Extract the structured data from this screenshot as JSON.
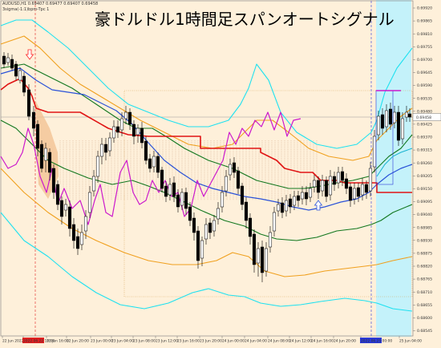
{
  "header": {
    "line1": "AUDUSD,H1  0.69407 0.69477 0.69407 0.69458",
    "line2": "3sigma(-1:1)bpm-Tpc 1"
  },
  "title": "豪ドルドル1時間足スパンオートシグナル",
  "price_axis": {
    "labels": [
      "0.69920",
      "0.69865",
      "0.69810",
      "0.69755",
      "0.69700",
      "0.69645",
      "0.69590",
      "0.69535",
      "0.69480",
      "0.69425",
      "0.69370",
      "0.69315",
      "0.69260",
      "0.69205",
      "0.69150",
      "0.69095",
      "0.69040",
      "0.68985",
      "0.68930",
      "0.68875",
      "0.68820",
      "0.68765",
      "0.68710",
      "0.68655",
      "0.68600",
      "0.68545"
    ],
    "current_price": "0.69458"
  },
  "time_axis": {
    "labels": [
      "22 Jun 2022",
      "2022.06.22 10:00",
      "22 Jun 16:00",
      "22 Jun 20:00",
      "23 Jun 00:00",
      "23 Jun 04:00",
      "23 Jun 08:00",
      "23 Jun 12:00",
      "23 Jun 16:00",
      "23 Jun 20:00",
      "24 Jun 00:00",
      "24 Jun 04:00",
      "24 Jun 08:00",
      "24 Jun 12:00",
      "24 Jun 16:00",
      "24 Jun 20:00",
      "2022.06.25 00:00",
      "25 Jun 04:00"
    ]
  },
  "colors": {
    "background": "#fef0da",
    "highlight_zone": "#c4f2fa",
    "bull_candle": "#ffffff",
    "bear_candle": "#000000",
    "sigma2": "#1ee1f0",
    "sigma3": "#f0a01e",
    "sigma1": "#11771e",
    "mid_line": "#2a52d8",
    "base_line": "#e01414",
    "lag_span": "#cc18cc",
    "arrow_down": "#ff2222",
    "arrow_up": "#2a52d8",
    "time_marker": "#e02020",
    "time_marker2": "#2a3ad8"
  }
}
